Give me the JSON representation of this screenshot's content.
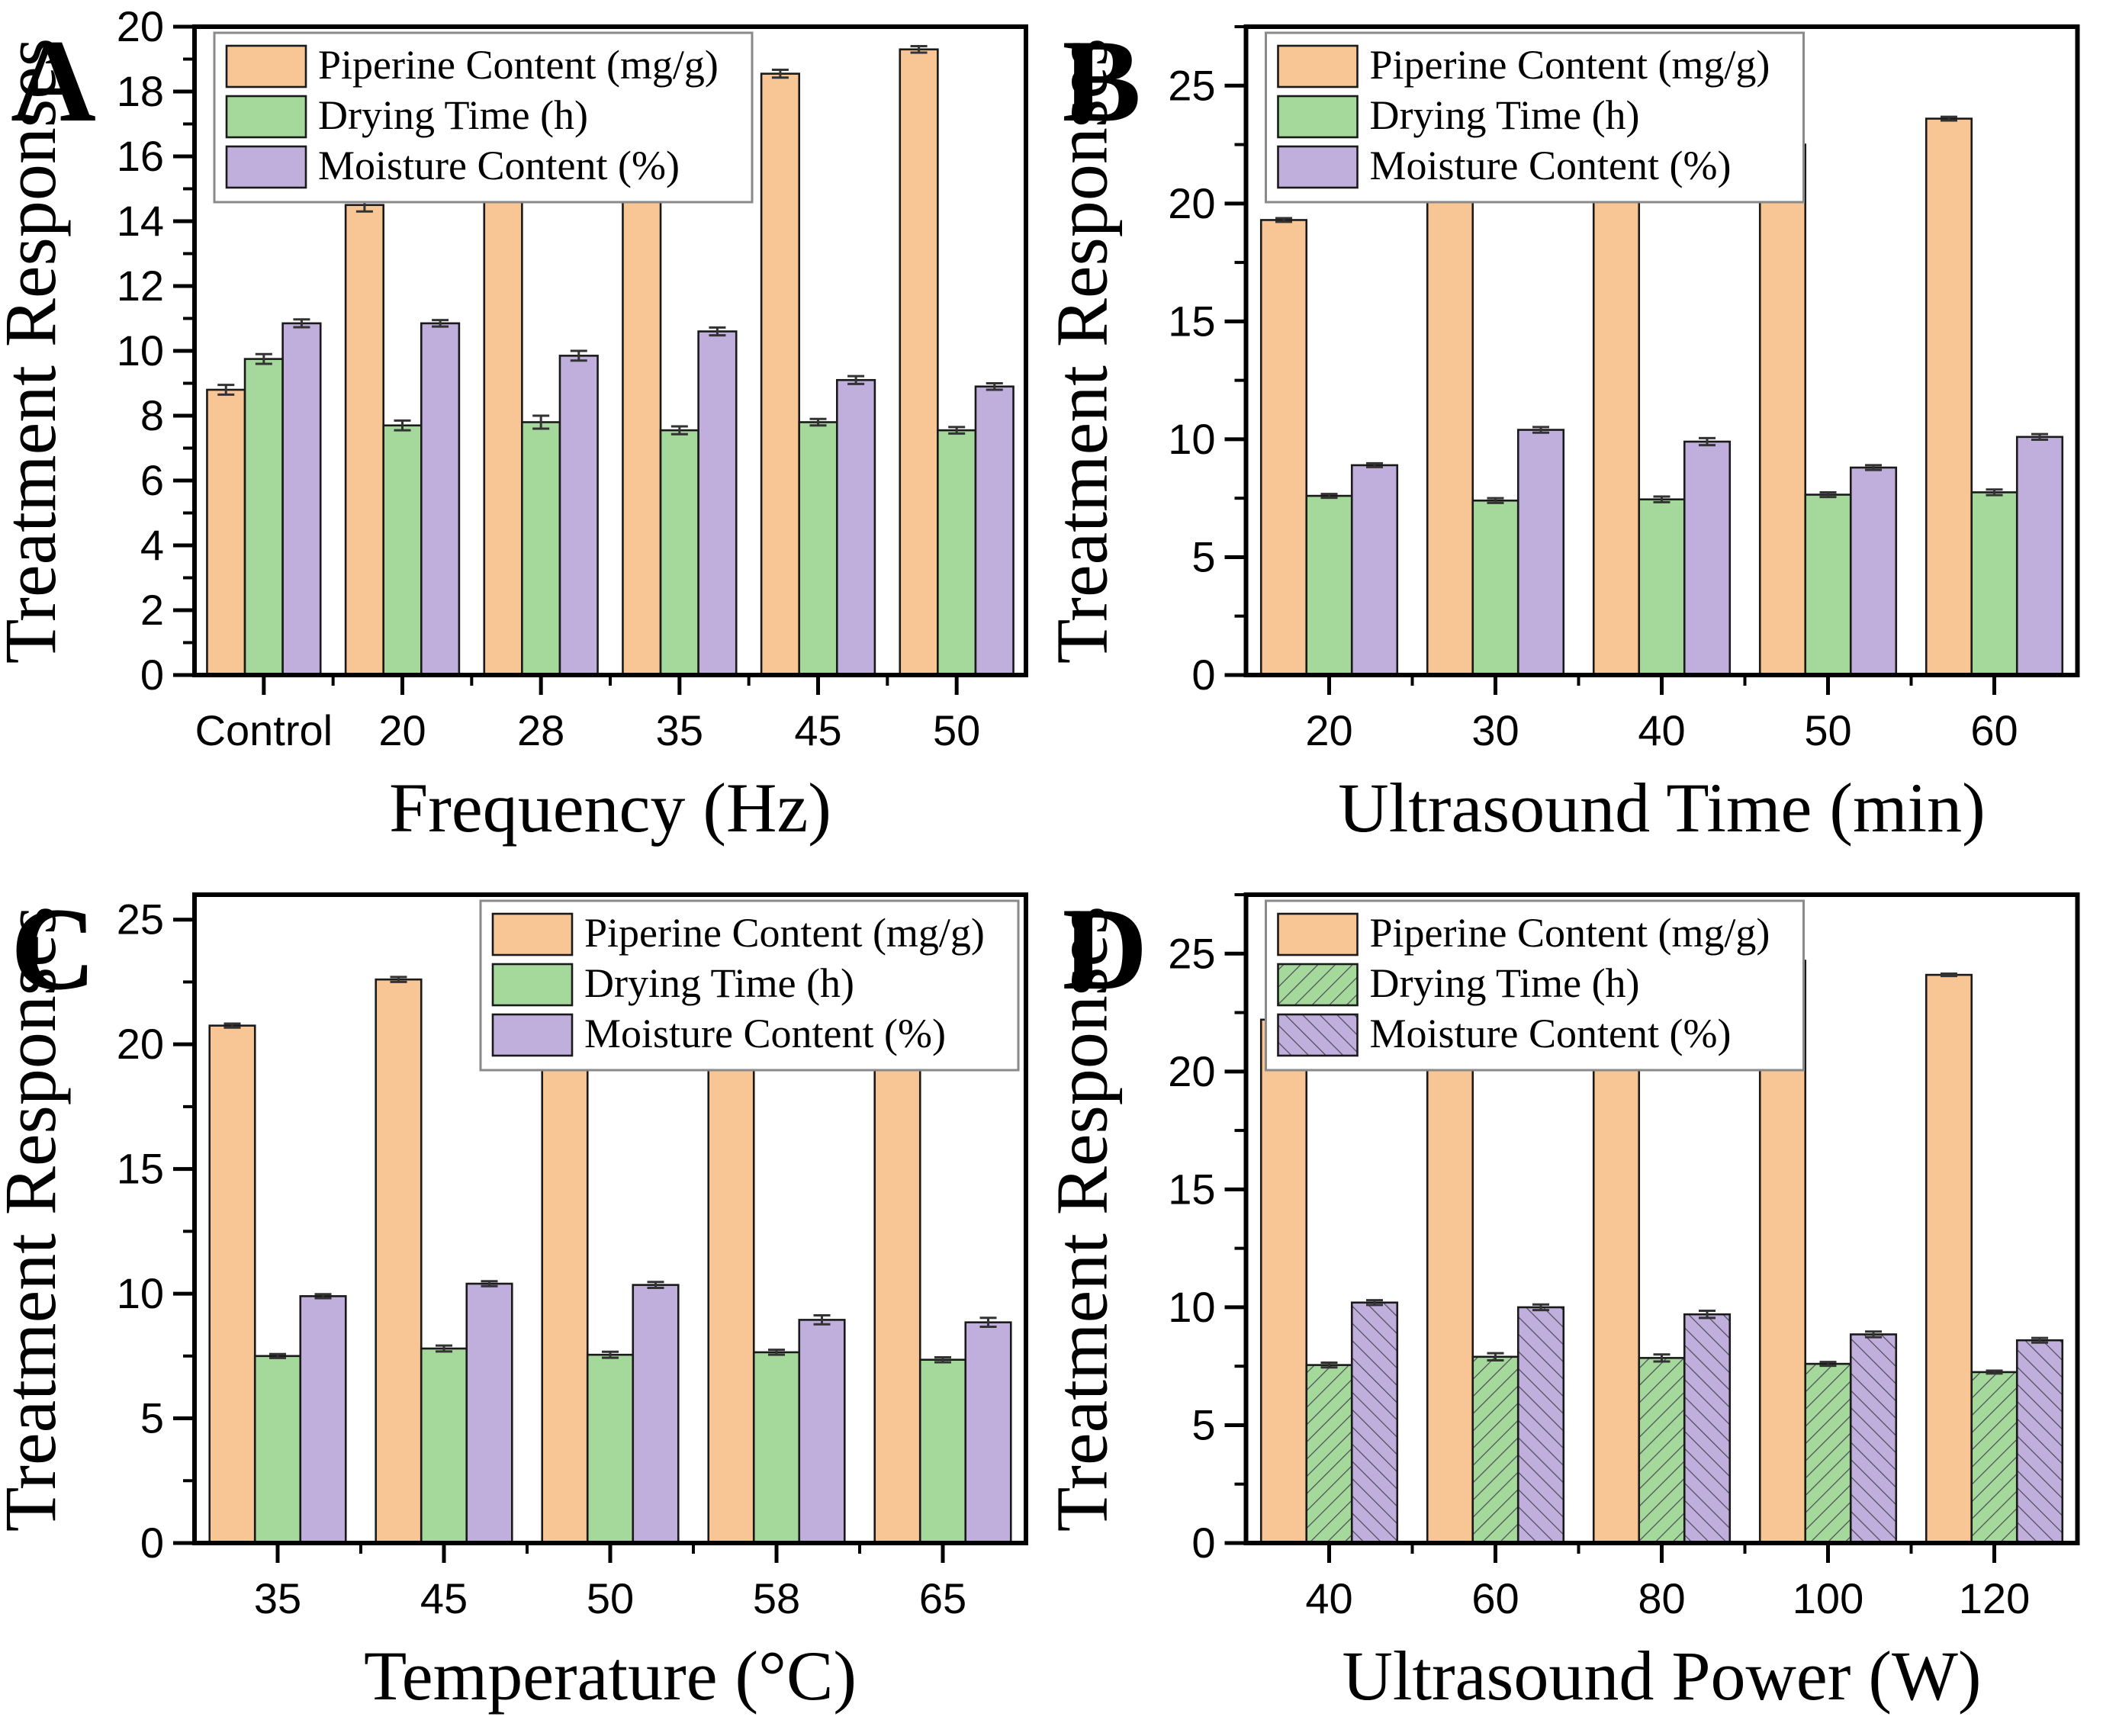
{
  "figure_title": "",
  "colors": {
    "piperine": "#F8C695",
    "drying": "#A5D89B",
    "moisture": "#C0AEDC",
    "bar_stroke": "#1a1a1a",
    "error_bar": "#333333",
    "hatch_line": "#4a4a58",
    "axis": "#000000",
    "legend_border": "#8a8a8a"
  },
  "legend_labels": [
    "Piperine Content (mg/g)",
    "Drying Time (h)",
    "Moisture Content (%)"
  ],
  "chart_data": [
    {
      "type": "bar",
      "panel_label": "A",
      "xlabel": "Frequency (Hz)",
      "ylabel": "Treatment Responses",
      "categories": [
        "Control",
        "20",
        "28",
        "35",
        "45",
        "50"
      ],
      "ylim": [
        0,
        20
      ],
      "ytick_major": 2,
      "ytick_minor": 1,
      "grid": false,
      "legend_position": "top-left",
      "series": [
        {
          "name": "Piperine Content (mg/g)",
          "color_key": "piperine",
          "hatch": null,
          "values": [
            8.8,
            14.5,
            15.45,
            17.6,
            18.55,
            19.3
          ],
          "errors": [
            0.15,
            0.2,
            0.15,
            0.12,
            0.12,
            0.1
          ]
        },
        {
          "name": "Drying Time (h)",
          "color_key": "drying",
          "hatch": null,
          "values": [
            9.75,
            7.7,
            7.8,
            7.55,
            7.8,
            7.55
          ],
          "errors": [
            0.15,
            0.15,
            0.2,
            0.12,
            0.1,
            0.1
          ]
        },
        {
          "name": "Moisture Content (%)",
          "color_key": "moisture",
          "hatch": null,
          "values": [
            10.85,
            10.85,
            9.85,
            10.6,
            9.1,
            8.9
          ],
          "errors": [
            0.12,
            0.1,
            0.15,
            0.12,
            0.12,
            0.1
          ]
        }
      ]
    },
    {
      "type": "bar",
      "panel_label": "B",
      "xlabel": "Ultrasound Time (min)",
      "ylabel": "Treatment Responses",
      "categories": [
        "20",
        "30",
        "40",
        "50",
        "60"
      ],
      "ylim": [
        0,
        27.5
      ],
      "ytick_major": 5,
      "ytick_minor": 2.5,
      "grid": false,
      "legend_position": "top-left",
      "series": [
        {
          "name": "Piperine Content (mg/g)",
          "color_key": "piperine",
          "hatch": null,
          "values": [
            19.3,
            21.6,
            22.6,
            22.5,
            23.6
          ],
          "errors": [
            0.08,
            0.12,
            0.1,
            0.08,
            0.08
          ]
        },
        {
          "name": "Drying Time (h)",
          "color_key": "drying",
          "hatch": null,
          "values": [
            7.6,
            7.4,
            7.45,
            7.65,
            7.75
          ],
          "errors": [
            0.08,
            0.1,
            0.12,
            0.1,
            0.12
          ]
        },
        {
          "name": "Moisture Content (%)",
          "color_key": "moisture",
          "hatch": null,
          "values": [
            8.9,
            10.4,
            9.9,
            8.8,
            10.1
          ],
          "errors": [
            0.08,
            0.12,
            0.15,
            0.1,
            0.12
          ]
        }
      ]
    },
    {
      "type": "bar",
      "panel_label": "C",
      "xlabel": "Temperature (°C)",
      "ylabel": "Treatment Responses",
      "categories": [
        "35",
        "45",
        "50",
        "58",
        "65"
      ],
      "ylim": [
        0,
        26
      ],
      "ytick_major": 5,
      "ytick_minor": 2.5,
      "grid": false,
      "legend_position": "top-right",
      "series": [
        {
          "name": "Piperine Content (mg/g)",
          "color_key": "piperine",
          "hatch": null,
          "values": [
            20.75,
            22.6,
            23.45,
            21.4,
            20.45
          ],
          "errors": [
            0.08,
            0.1,
            0.1,
            0.12,
            0.1
          ]
        },
        {
          "name": "Drying Time (h)",
          "color_key": "drying",
          "hatch": null,
          "values": [
            7.5,
            7.8,
            7.55,
            7.65,
            7.35
          ],
          "errors": [
            0.08,
            0.12,
            0.12,
            0.1,
            0.1
          ]
        },
        {
          "name": "Moisture Content (%)",
          "color_key": "moisture",
          "hatch": null,
          "values": [
            9.9,
            10.4,
            10.35,
            8.95,
            8.85
          ],
          "errors": [
            0.08,
            0.1,
            0.12,
            0.18,
            0.18
          ]
        }
      ]
    },
    {
      "type": "bar",
      "panel_label": "D",
      "xlabel": "Ultrasound Power (W)",
      "ylabel": "Treatment Responses",
      "categories": [
        "40",
        "60",
        "80",
        "100",
        "120"
      ],
      "ylim": [
        0,
        27.5
      ],
      "ytick_major": 5,
      "ytick_minor": 2.5,
      "grid": false,
      "legend_position": "top-left",
      "series": [
        {
          "name": "Piperine Content (mg/g)",
          "color_key": "piperine",
          "hatch": null,
          "values": [
            22.2,
            23.65,
            25.0,
            24.7,
            24.1
          ],
          "errors": [
            0.08,
            0.1,
            0.1,
            0.12,
            0.05
          ]
        },
        {
          "name": "Drying Time (h)",
          "color_key": "drying",
          "hatch": "fwd",
          "values": [
            7.55,
            7.9,
            7.85,
            7.6,
            7.25
          ],
          "errors": [
            0.1,
            0.15,
            0.15,
            0.08,
            0.06
          ]
        },
        {
          "name": "Moisture Content (%)",
          "color_key": "moisture",
          "hatch": "bwd",
          "values": [
            10.2,
            10.0,
            9.7,
            8.85,
            8.6
          ],
          "errors": [
            0.1,
            0.12,
            0.15,
            0.12,
            0.1
          ]
        }
      ]
    }
  ]
}
